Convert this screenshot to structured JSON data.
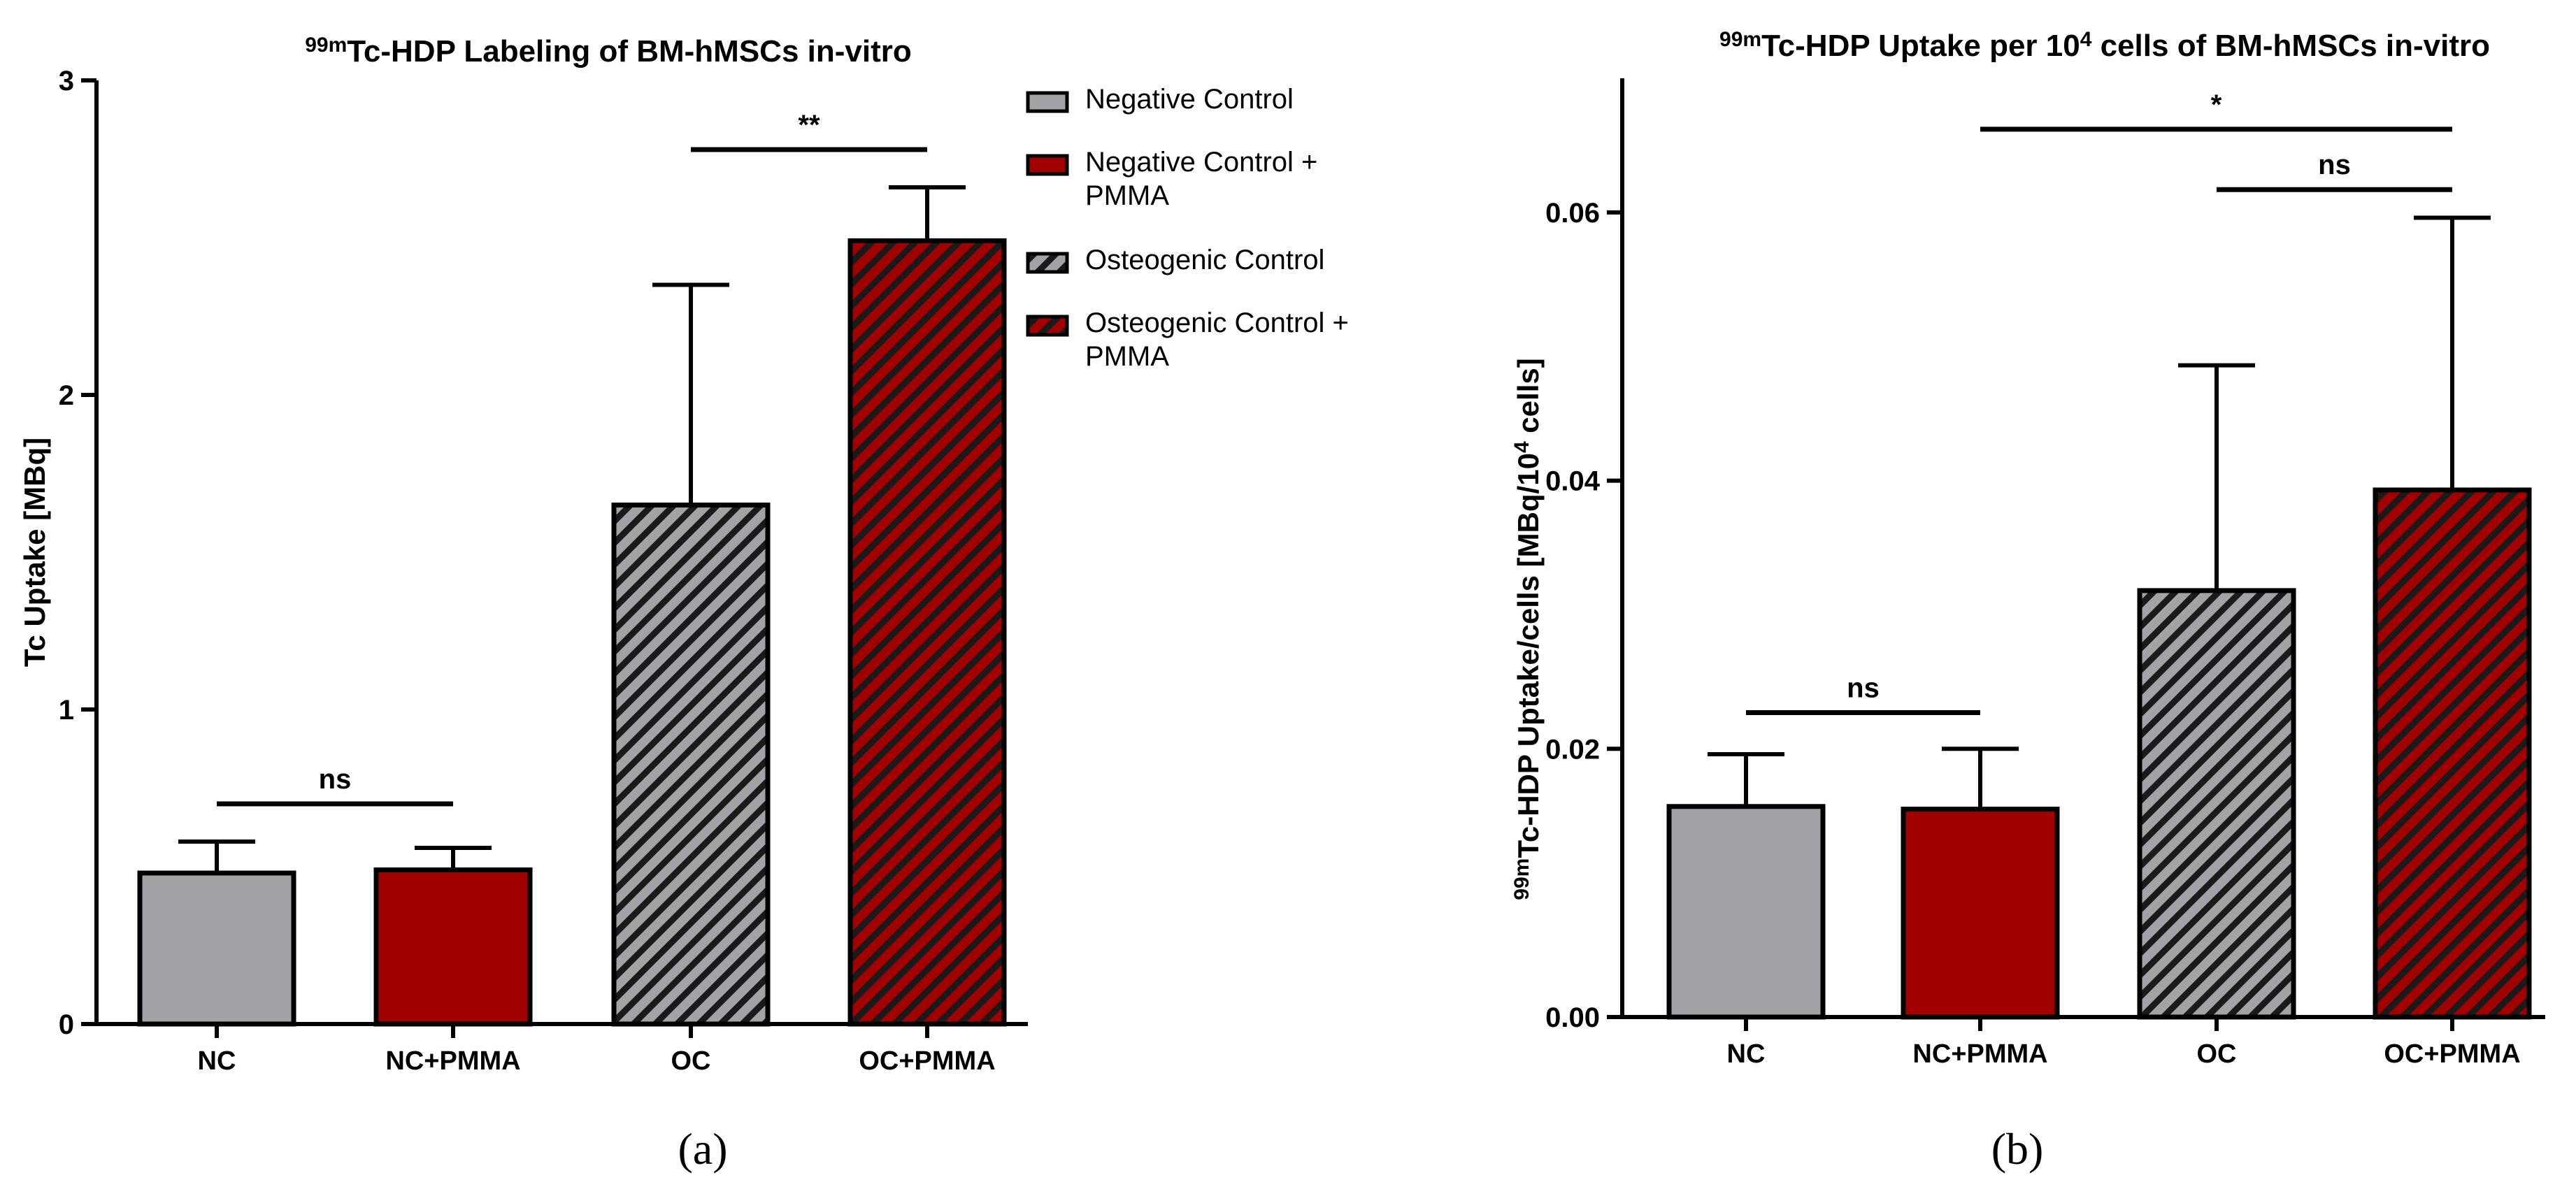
{
  "chart_data": [
    {
      "type": "bar",
      "title": {
        "sup": "99m",
        "main": "Tc-HDP Labeling of BM-hMSCs in-vitro"
      },
      "ylabel": "Tc Uptake [MBq]",
      "xlabel": "",
      "ylim": [
        0,
        3
      ],
      "yticks": [
        "0",
        "1",
        "2",
        "3"
      ],
      "ytick_values": [
        0,
        1,
        2,
        3
      ],
      "categories": [
        "NC",
        "NC+PMMA",
        "OC",
        "OC+PMMA"
      ],
      "values": [
        0.48,
        0.49,
        1.65,
        2.49
      ],
      "errors": [
        0.1,
        0.07,
        0.7,
        0.17
      ],
      "bar_styles": [
        "gray-solid",
        "red-solid",
        "gray-hatched",
        "red-hatched"
      ],
      "significance": [
        {
          "from": 0,
          "to": 1,
          "label": "ns",
          "y": 0.7
        },
        {
          "from": 2,
          "to": 3,
          "label": "**",
          "y": 2.78
        }
      ],
      "legend": {
        "position": "right",
        "entries": [
          {
            "style": "gray-solid",
            "lines": [
              "Negative Control"
            ]
          },
          {
            "style": "red-solid",
            "lines": [
              "Negative Control +",
              "PMMA"
            ]
          },
          {
            "style": "gray-hatched",
            "lines": [
              "Osteogenic Control"
            ]
          },
          {
            "style": "red-hatched",
            "lines": [
              "Osteogenic Control +",
              "PMMA"
            ]
          }
        ]
      },
      "caption": "(a)"
    },
    {
      "type": "bar",
      "title": {
        "sup": "99m",
        "main_pre": "Tc-HDP Uptake per 10",
        "sup2": "4",
        "main_post": " cells of BM-hMSCs in-vitro"
      },
      "ylabel": {
        "sup": "99m",
        "main_pre": "Tc-HDP Uptake/cells [MBq/10",
        "sup2": "4",
        "main_post": " cells]"
      },
      "xlabel": "",
      "ylim": [
        0,
        0.07
      ],
      "yticks": [
        "0.00",
        "0.02",
        "0.04",
        "0.06"
      ],
      "ytick_values": [
        0,
        0.02,
        0.04,
        0.06
      ],
      "categories": [
        "NC",
        "NC+PMMA",
        "OC",
        "OC+PMMA"
      ],
      "values": [
        0.0157,
        0.0155,
        0.0318,
        0.0393
      ],
      "errors": [
        0.0039,
        0.0045,
        0.0168,
        0.0203
      ],
      "bar_styles": [
        "gray-solid",
        "red-solid",
        "gray-hatched",
        "red-hatched"
      ],
      "significance": [
        {
          "from": 0,
          "to": 1,
          "label": "ns",
          "y": 0.0227
        },
        {
          "from": 2,
          "to": 3,
          "label": "ns",
          "y": 0.0617
        },
        {
          "from": 1,
          "to": 3,
          "label": "*",
          "y": 0.0662
        }
      ],
      "caption": "(b)"
    }
  ],
  "colors": {
    "gray": "#a3a3a7",
    "red": "#a00000",
    "dark": "#1a1a1a"
  }
}
